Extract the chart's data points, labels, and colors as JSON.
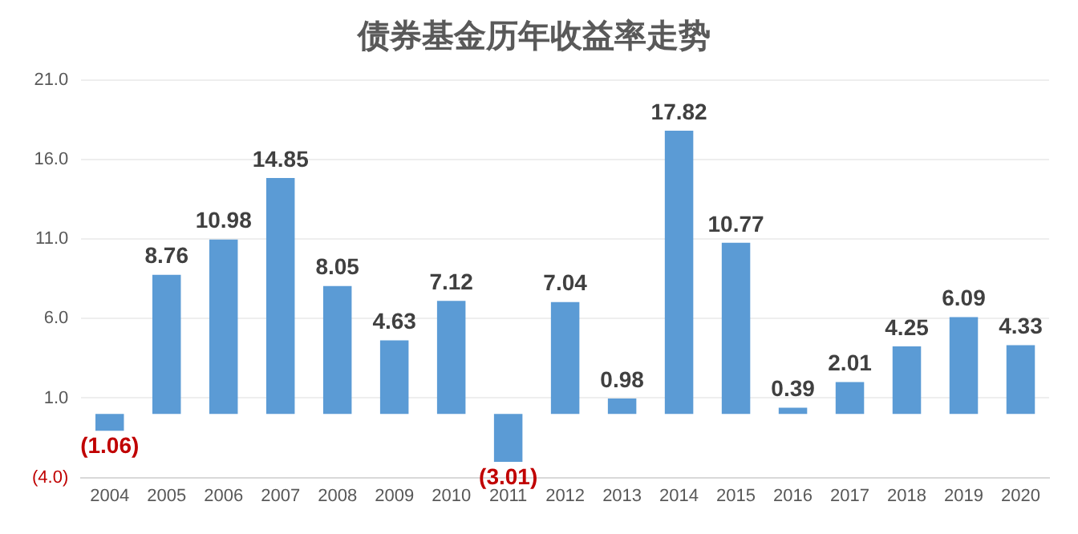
{
  "chart_data": {
    "type": "bar",
    "title": "债券基金历年收益率走势",
    "categories": [
      "2004",
      "2005",
      "2006",
      "2007",
      "2008",
      "2009",
      "2010",
      "2011",
      "2012",
      "2013",
      "2014",
      "2015",
      "2016",
      "2017",
      "2018",
      "2019",
      "2020"
    ],
    "values": [
      -1.06,
      8.76,
      10.98,
      14.85,
      8.05,
      4.63,
      7.12,
      -3.01,
      7.04,
      0.98,
      17.82,
      10.77,
      0.39,
      2.01,
      4.25,
      6.09,
      4.33
    ],
    "value_labels": [
      "(1.06)",
      "8.76",
      "10.98",
      "14.85",
      "8.05",
      "4.63",
      "7.12",
      "(3.01)",
      "7.04",
      "0.98",
      "17.82",
      "10.77",
      "0.39",
      "2.01",
      "4.25",
      "6.09",
      "4.33"
    ],
    "color": "#5b9bd5",
    "ylim": [
      -4,
      21
    ],
    "yticks": [
      {
        "value": -4,
        "label": "(4.0)"
      },
      {
        "value": 1,
        "label": "1.0"
      },
      {
        "value": 6,
        "label": "6.0"
      },
      {
        "value": 11,
        "label": "11.0"
      },
      {
        "value": 16,
        "label": "16.0"
      },
      {
        "value": 21,
        "label": "21.0"
      }
    ],
    "grid": "y",
    "legend": false
  }
}
